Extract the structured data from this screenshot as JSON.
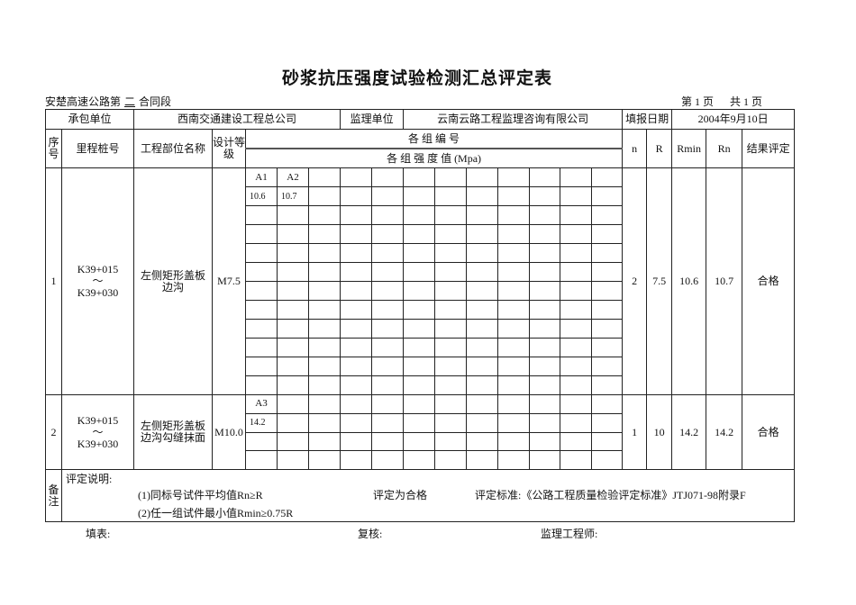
{
  "title": "砂浆抗压强度试验检测汇总评定表",
  "project": {
    "prefix": "安楚高速公路第",
    "section": "二",
    "suffix": "合同段"
  },
  "page": {
    "current_label": "第 1 页",
    "total_label": "共 1 页"
  },
  "info": {
    "contractor_label": "承包单位",
    "contractor": "西南交通建设工程总公司",
    "supervisor_label": "监理单位",
    "supervisor": "云南云路工程监理咨询有限公司",
    "date_label": "填报日期",
    "date": "2004年9月10日"
  },
  "headers": {
    "seq": "序号",
    "station": "里程桩号",
    "part": "工程部位名称",
    "grade": "设计等级",
    "group_no": "各 组 编 号",
    "group_strength": "各 组 强 度 值 (Mpa)",
    "n": "n",
    "R": "R",
    "Rmin": "Rmin",
    "Rn": "Rn",
    "result": "结果评定"
  },
  "rows": [
    {
      "seq": "1",
      "station_from": "K39+015",
      "tilde": "～",
      "station_to": "K39+030",
      "part": "左侧矩形盖板边沟",
      "grade": "M7.5",
      "grid": [
        [
          "A1",
          "A2"
        ],
        [
          "10.6",
          "10.7"
        ]
      ],
      "subrows": 12,
      "n": "2",
      "R": "7.5",
      "Rmin": "10.6",
      "Rn": "10.7",
      "result": "合格"
    },
    {
      "seq": "2",
      "station_from": "K39+015",
      "tilde": "～",
      "station_to": "K39+030",
      "part": "左侧矩形盖板边沟勾缝抹面",
      "grade": "M10.0",
      "grid": [
        [
          "A3"
        ],
        [
          "14.2"
        ]
      ],
      "subrows": 4,
      "n": "1",
      "R": "10",
      "Rmin": "14.2",
      "Rn": "14.2",
      "result": "合格"
    }
  ],
  "remarks": {
    "label": "备注",
    "heading": "评定说明:",
    "rule1": "(1)同标号试件平均值Rn≥R",
    "rule2": "(2)任一组试件最小值Rmin≥0.75R",
    "conclusion": "评定为合格",
    "standard": "评定标准:《公路工程质量检验评定标准》JTJ071-98附录F"
  },
  "footer": {
    "filled_by": "填表:",
    "reviewed_by": "复核:",
    "supervisor_engineer": "监理工程师:"
  }
}
